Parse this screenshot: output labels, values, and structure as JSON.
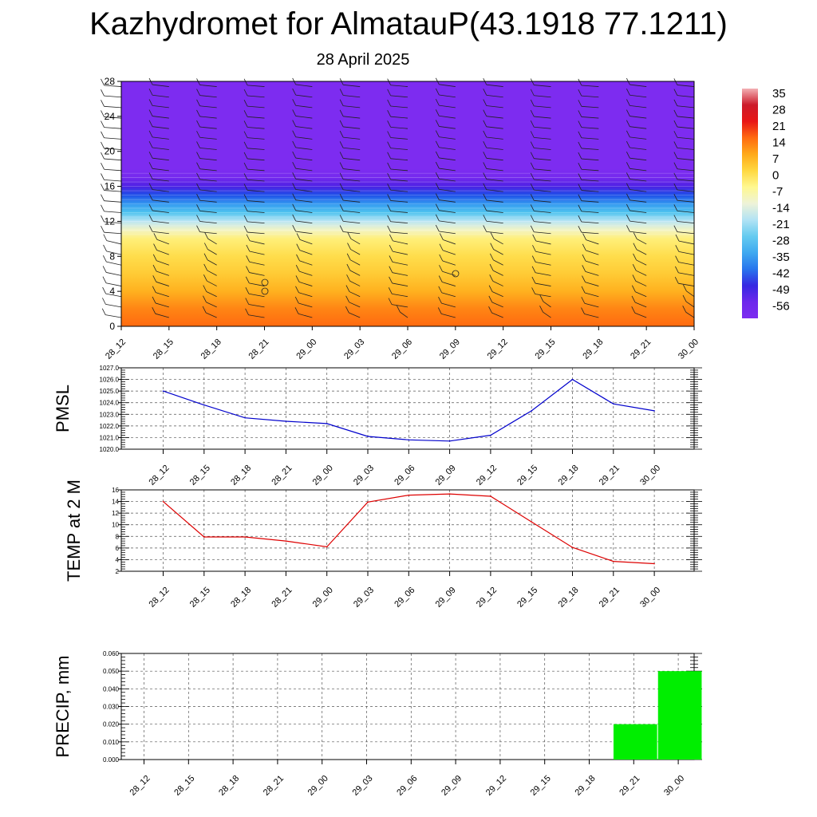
{
  "title": "Kazhydromet for AlmatauP(43.1918 77.1211)",
  "subtitle": "28 April 2025",
  "time_labels": [
    "28_12",
    "28_15",
    "28_18",
    "28_21",
    "29_00",
    "29_03",
    "29_06",
    "29_09",
    "29_12",
    "29_15",
    "29_18",
    "29_21",
    "30_00"
  ],
  "chart_data": [
    {
      "type": "heatmap",
      "y_ticks": [
        0,
        4,
        8,
        12,
        16,
        20,
        24,
        28
      ],
      "ylim": [
        0,
        28
      ],
      "x": [
        "28_12",
        "28_15",
        "28_18",
        "28_21",
        "29_00",
        "29_03",
        "29_06",
        "29_09",
        "29_12",
        "29_15",
        "29_18",
        "29_21",
        "30_00"
      ],
      "temperature_profile": [
        {
          "level": 0,
          "value": 14
        },
        {
          "level": 2,
          "value": 11
        },
        {
          "level": 4,
          "value": 6
        },
        {
          "level": 6,
          "value": 2
        },
        {
          "level": 8,
          "value": -1
        },
        {
          "level": 10,
          "value": -5
        },
        {
          "level": 11,
          "value": -12
        },
        {
          "level": 12,
          "value": -20
        },
        {
          "level": 13,
          "value": -30
        },
        {
          "level": 14,
          "value": -38
        },
        {
          "level": 15,
          "value": -45
        },
        {
          "level": 16,
          "value": -52
        },
        {
          "level": 17,
          "value": -58
        },
        {
          "level": 18,
          "value": -60
        },
        {
          "level": 28,
          "value": -60
        }
      ],
      "colorbar_labels": [
        "35",
        "28",
        "21",
        "14",
        "7",
        "0",
        "-7",
        "-14",
        "-21",
        "-28",
        "-35",
        "-42",
        "-49",
        "-56"
      ],
      "overlay": "wind barbs"
    },
    {
      "type": "line",
      "ylabel": "PMSL",
      "x": [
        "28_12",
        "28_15",
        "28_18",
        "28_21",
        "29_00",
        "29_03",
        "29_06",
        "29_09",
        "29_12",
        "29_15",
        "29_18",
        "29_21",
        "30_00"
      ],
      "values": [
        1025.0,
        1023.8,
        1022.7,
        1022.4,
        1022.2,
        1021.1,
        1020.8,
        1020.7,
        1021.2,
        1023.3,
        1026.0,
        1023.9,
        1023.3
      ],
      "ylim": [
        1020.0,
        1027.0
      ],
      "y_ticks": [
        "1020.0",
        "1021.0",
        "1022.0",
        "1023.0",
        "1024.0",
        "1025.0",
        "1026.0",
        "1027.0"
      ],
      "color": "#0000cc",
      "grid": true
    },
    {
      "type": "line",
      "ylabel": "TEMP at 2 M",
      "x": [
        "28_12",
        "28_15",
        "28_18",
        "28_21",
        "29_00",
        "29_03",
        "29_06",
        "29_09",
        "29_12",
        "29_15",
        "29_18",
        "29_21",
        "30_00"
      ],
      "values": [
        14.0,
        7.9,
        7.9,
        7.2,
        6.2,
        13.9,
        15.1,
        15.3,
        14.9,
        10.5,
        6.1,
        3.7,
        3.3
      ],
      "ylim": [
        2,
        16
      ],
      "y_ticks": [
        "2",
        "4",
        "6",
        "8",
        "10",
        "12",
        "14",
        "16"
      ],
      "color": "#dd0000",
      "grid": true
    },
    {
      "type": "bar",
      "ylabel": "PRECIP, mm",
      "x": [
        "28_12",
        "28_15",
        "28_18",
        "28_21",
        "29_00",
        "29_03",
        "29_06",
        "29_09",
        "29_12",
        "29_15",
        "29_18",
        "29_21",
        "30_00"
      ],
      "values": [
        0,
        0,
        0,
        0,
        0,
        0,
        0,
        0,
        0,
        0,
        0,
        0.02,
        0.05
      ],
      "ylim": [
        0,
        0.06
      ],
      "y_ticks": [
        "0.000",
        "0.010",
        "0.020",
        "0.030",
        "0.040",
        "0.050",
        "0.060"
      ],
      "color": "#00ee00",
      "grid": true
    }
  ]
}
